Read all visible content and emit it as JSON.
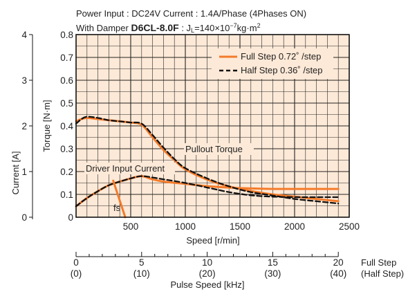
{
  "header": {
    "line1": "Power Input : DC24V    Current : 1.4A/Phase (4Phases ON)",
    "line2_prefix": "With Damper ",
    "line2_model": "D6CL-8.0F",
    "line2_suffix": " : J",
    "line2_sub": "L",
    "line2_mid": "=140×10",
    "line2_exp": "−7",
    "line2_unit": "kg·m",
    "line2_unit_exp": "2"
  },
  "colors": {
    "plot_bg": "#fde9d7",
    "full_step": "#f47b2a",
    "half_step": "#111111",
    "grid": "#222222"
  },
  "annotations": {
    "pullout": "Pullout Torque",
    "driver_current": "Driver Input Current",
    "fs": "fs"
  },
  "chart_data": {
    "type": "line",
    "xlabel": "Speed [r/min]",
    "ylabel": "Torque [N·m]",
    "y2label": "Current [A]",
    "xlim": [
      0,
      2500
    ],
    "ylim": [
      0,
      0.8
    ],
    "y2lim": [
      0,
      4
    ],
    "x_ticks": [
      "500",
      "1000",
      "1500",
      "2000",
      "2500"
    ],
    "y_ticks": [
      "0",
      "0.1",
      "0.2",
      "0.3",
      "0.4",
      "0.5",
      "0.6",
      "0.7",
      "0.8"
    ],
    "y2_ticks": [
      "0",
      "1",
      "2",
      "3",
      "4"
    ],
    "grid": true,
    "legend_position": "top-right",
    "series": [
      {
        "name": "Full Step 0.72˚ /step",
        "style": "solid",
        "curve": "torque",
        "x": [
          0,
          50,
          100,
          200,
          300,
          400,
          500,
          600,
          700,
          800,
          900,
          1000,
          1200,
          1400,
          1600,
          1800,
          2000,
          2200,
          2400
        ],
        "y": [
          0.42,
          0.43,
          0.435,
          0.43,
          0.425,
          0.42,
          0.415,
          0.405,
          0.35,
          0.295,
          0.25,
          0.21,
          0.165,
          0.135,
          0.115,
          0.1,
          0.09,
          0.08,
          0.07
        ]
      },
      {
        "name": "Half Step 0.36˚ /step",
        "style": "dashed",
        "curve": "torque",
        "x": [
          0,
          50,
          100,
          200,
          300,
          400,
          500,
          600,
          700,
          800,
          900,
          1000,
          1200,
          1400,
          1600,
          1800,
          2000,
          2200,
          2400
        ],
        "y": [
          0.41,
          0.43,
          0.44,
          0.435,
          0.425,
          0.42,
          0.415,
          0.41,
          0.36,
          0.305,
          0.255,
          0.215,
          0.17,
          0.135,
          0.11,
          0.095,
          0.08,
          0.07,
          0.06
        ]
      },
      {
        "name": "Full Step 0.72˚ /step",
        "style": "solid",
        "curve": "current",
        "x": [
          0,
          100,
          200,
          300,
          400,
          500,
          600,
          700,
          800,
          1000,
          1200,
          1400,
          1600,
          1800,
          2000,
          2200,
          2400
        ],
        "y": [
          0.24,
          0.42,
          0.57,
          0.7,
          0.78,
          0.85,
          0.9,
          0.83,
          0.78,
          0.73,
          0.68,
          0.65,
          0.63,
          0.62,
          0.62,
          0.62,
          0.62
        ]
      },
      {
        "name": "Half Step 0.36˚ /step",
        "style": "dashed",
        "curve": "current",
        "x": [
          0,
          100,
          200,
          300,
          400,
          500,
          600,
          700,
          800,
          1000,
          1200,
          1400,
          1600,
          1800,
          2000,
          2200,
          2400
        ],
        "y": [
          0.24,
          0.42,
          0.57,
          0.7,
          0.78,
          0.85,
          0.9,
          0.87,
          0.83,
          0.75,
          0.65,
          0.55,
          0.48,
          0.45,
          0.44,
          0.44,
          0.44
        ]
      }
    ],
    "fs_marker": {
      "x": [
        340,
        450
      ],
      "y": [
        0.8,
        0
      ]
    },
    "secondary_axis": {
      "label": "Pulse Speed [kHz]",
      "row1_name": "Full Step",
      "row2_name": "(Half Step)",
      "row1_ticks": [
        "0",
        "5",
        "10",
        "15",
        "20"
      ],
      "row2_ticks": [
        "(0)",
        "(10)",
        "(20)",
        "(30)",
        "(40)"
      ],
      "tick_speeds": [
        0,
        600,
        1200,
        1800,
        2400
      ]
    }
  }
}
